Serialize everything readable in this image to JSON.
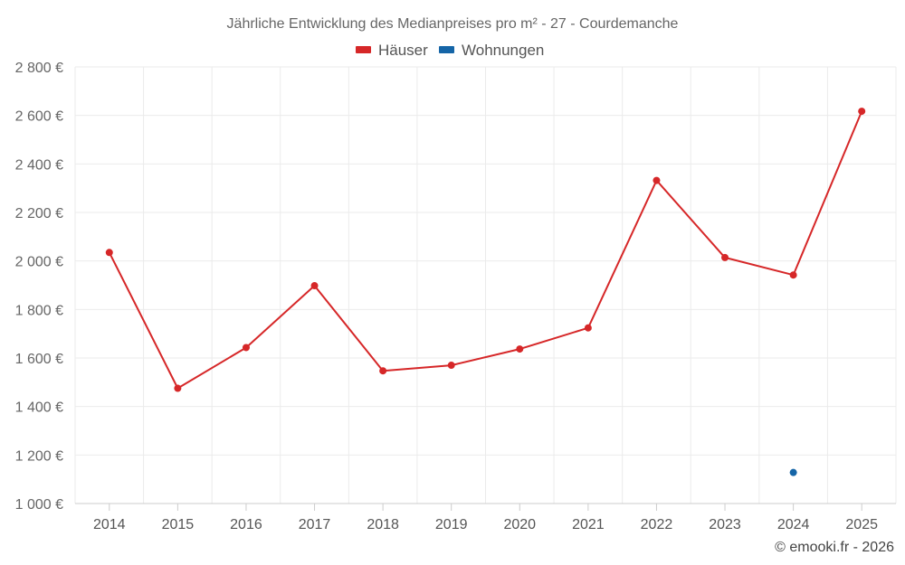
{
  "chart_data": {
    "type": "line",
    "title": "Jährliche Entwicklung des Medianpreises pro m² - 27 - Courdemanche",
    "categories": [
      "2014",
      "2015",
      "2016",
      "2017",
      "2018",
      "2019",
      "2020",
      "2021",
      "2022",
      "2023",
      "2024",
      "2025"
    ],
    "series": [
      {
        "name": "Häuser",
        "color": "#d62728",
        "values": [
          2035,
          1475,
          1643,
          1898,
          1547,
          1570,
          1637,
          1724,
          2332,
          2014,
          1942,
          2617
        ]
      },
      {
        "name": "Wohnungen",
        "color": "#1565a7",
        "values": [
          null,
          null,
          null,
          null,
          null,
          null,
          null,
          null,
          null,
          null,
          1128,
          null
        ]
      }
    ],
    "ylim": [
      1000,
      2800
    ],
    "yticks": [
      1000,
      1200,
      1400,
      1600,
      1800,
      2000,
      2200,
      2400,
      2600,
      2800
    ],
    "ytick_labels": [
      "1 000 €",
      "1 200 €",
      "1 400 €",
      "1 600 €",
      "1 800 €",
      "2 000 €",
      "2 200 €",
      "2 400 €",
      "2 600 €",
      "2 800 €"
    ],
    "xlabel": "",
    "ylabel": "",
    "grid": true,
    "legend_position": "top-center"
  },
  "copyright": "© emooki.fr - 2026"
}
